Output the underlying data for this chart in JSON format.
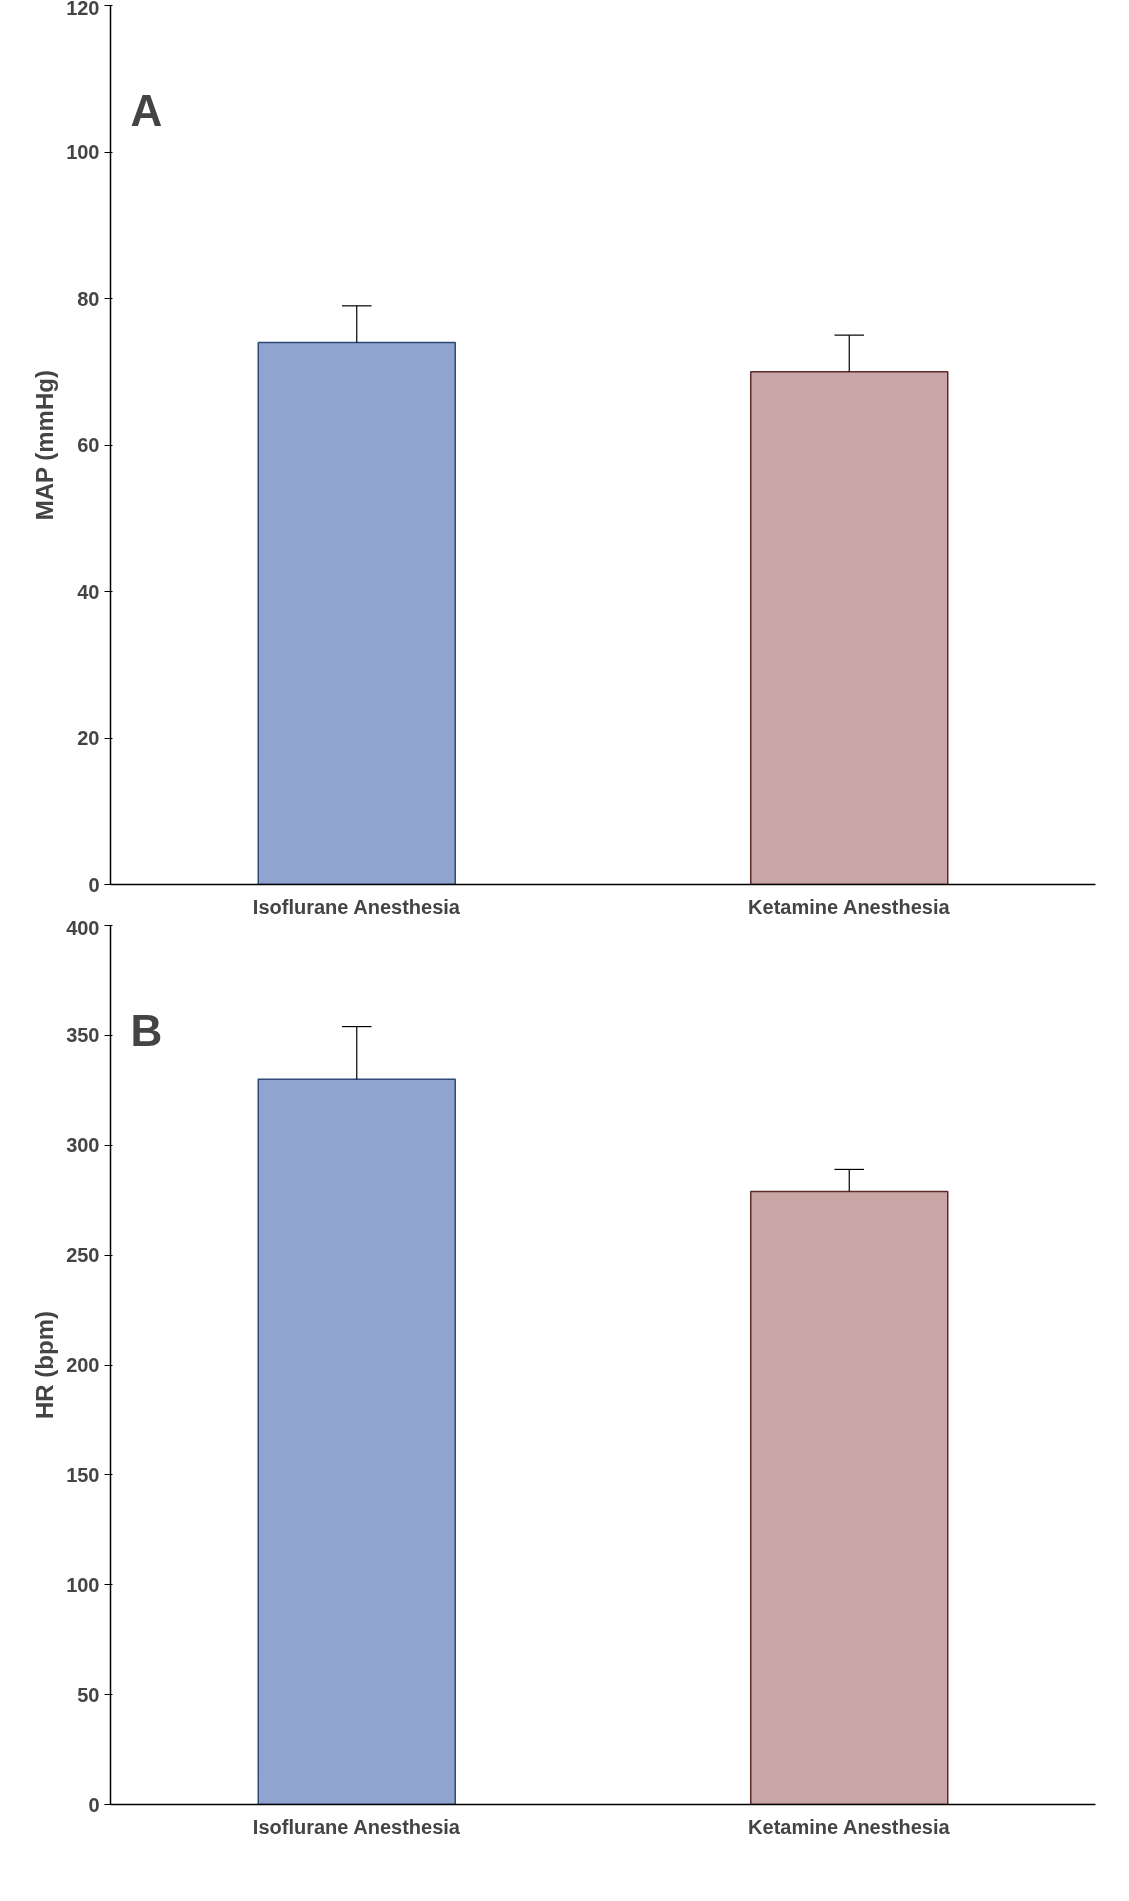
{
  "chart_data": [
    {
      "type": "bar",
      "ylabel": "MAP (mmHg)",
      "categories": [
        "Isoflurane Anesthesia",
        "Ketamine Anesthesia"
      ],
      "values": [
        74,
        70
      ],
      "errors": [
        5,
        5
      ],
      "colors": [
        "#8fa5cf",
        "#c9a5a5"
      ],
      "ylim": [
        0,
        120
      ],
      "yticks": [
        0,
        20,
        40,
        60,
        80,
        100,
        120
      ],
      "annotations": [
        "A"
      ]
    },
    {
      "type": "bar",
      "ylabel": "HR (bpm)",
      "categories": [
        "Isoflurane Anesthesia",
        "Ketamine Anesthesia"
      ],
      "values": [
        330,
        279
      ],
      "errors": [
        24,
        10
      ],
      "colors": [
        "#8fa5cf",
        "#c9a5a5"
      ],
      "ylim": [
        0,
        400
      ],
      "yticks": [
        0,
        50,
        100,
        150,
        200,
        250,
        300,
        350,
        400
      ],
      "annotations": [
        "B"
      ]
    }
  ]
}
